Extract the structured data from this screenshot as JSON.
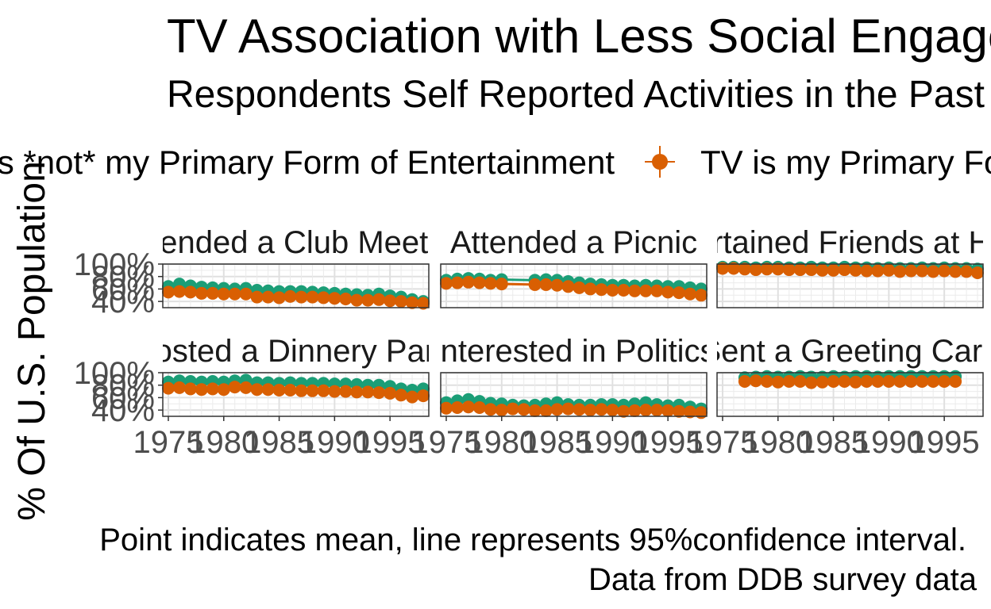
{
  "title": "TV Association with Less Social Engagement",
  "subtitle": "Respondents Self Reported Activities in the Past Year",
  "caption_line1": "Point indicates mean, line represents 95%confidence interval.",
  "caption_line2": "Data from DDB survey data",
  "colors": {
    "not_primary": "#1b9e77",
    "primary": "#d95f02"
  },
  "chart_data": {
    "type": "scatter",
    "ylabel": "% Of U.S. Population",
    "xlabel": "",
    "x_ticks": [
      "1975",
      "1980",
      "1985",
      "1990",
      "1995"
    ],
    "y_ticks": [
      "40%",
      "60%",
      "80%",
      "100%"
    ],
    "ylim": [
      0.3,
      1.0
    ],
    "xlim": [
      1974.5,
      1998.5
    ],
    "legend_position": "top",
    "legend": [
      {
        "name": "TV is *not* my Primary Form of Entertainment",
        "color": "#1b9e77"
      },
      {
        "name": "TV is my Primary Form of Entertainment",
        "color": "#d95f02"
      }
    ],
    "panels": [
      {
        "title": "Attended a Club Meeting",
        "series": [
          {
            "name": "TV is *not* my Primary Form of Entertainment",
            "x": [
              1975,
              1976,
              1977,
              1978,
              1979,
              1980,
              1981,
              1982,
              1983,
              1984,
              1985,
              1986,
              1987,
              1988,
              1989,
              1990,
              1991,
              1992,
              1993,
              1994,
              1995,
              1996,
              1997,
              1998
            ],
            "y": [
              0.64,
              0.68,
              0.65,
              0.63,
              0.62,
              0.61,
              0.6,
              0.61,
              0.58,
              0.57,
              0.56,
              0.56,
              0.56,
              0.55,
              0.54,
              0.53,
              0.52,
              0.51,
              0.5,
              0.52,
              0.49,
              0.47,
              0.43,
              0.4
            ]
          },
          {
            "name": "TV is my Primary Form of Entertainment",
            "x": [
              1975,
              1976,
              1977,
              1978,
              1979,
              1980,
              1981,
              1982,
              1983,
              1984,
              1985,
              1986,
              1987,
              1988,
              1989,
              1990,
              1991,
              1992,
              1993,
              1994,
              1995,
              1996,
              1997,
              1998
            ],
            "y": [
              0.55,
              0.56,
              0.55,
              0.53,
              0.53,
              0.52,
              0.52,
              0.52,
              0.47,
              0.47,
              0.46,
              0.48,
              0.47,
              0.47,
              0.46,
              0.45,
              0.44,
              0.42,
              0.42,
              0.43,
              0.41,
              0.4,
              0.38,
              0.37
            ]
          }
        ]
      },
      {
        "title": "Attended a Picnic",
        "series": [
          {
            "name": "TV is *not* my Primary Form of Entertainment",
            "x": [
              1975,
              1976,
              1977,
              1978,
              1979,
              1980,
              1983,
              1984,
              1985,
              1986,
              1987,
              1988,
              1989,
              1990,
              1991,
              1992,
              1993,
              1994,
              1995,
              1996,
              1997,
              1998
            ],
            "y": [
              0.74,
              0.76,
              0.77,
              0.76,
              0.74,
              0.75,
              0.74,
              0.75,
              0.74,
              0.72,
              0.7,
              0.68,
              0.67,
              0.66,
              0.66,
              0.65,
              0.66,
              0.65,
              0.64,
              0.64,
              0.62,
              0.6
            ]
          },
          {
            "name": "TV is my Primary Form of Entertainment",
            "x": [
              1975,
              1976,
              1977,
              1978,
              1979,
              1980,
              1983,
              1984,
              1985,
              1986,
              1987,
              1988,
              1989,
              1990,
              1991,
              1992,
              1993,
              1994,
              1995,
              1996,
              1997,
              1998
            ],
            "y": [
              0.69,
              0.7,
              0.71,
              0.7,
              0.69,
              0.68,
              0.67,
              0.67,
              0.66,
              0.64,
              0.62,
              0.6,
              0.59,
              0.58,
              0.58,
              0.57,
              0.57,
              0.57,
              0.55,
              0.54,
              0.52,
              0.5
            ]
          }
        ]
      },
      {
        "title": "Entertained Friends at Home",
        "series": [
          {
            "name": "TV is *not* my Primary Form of Entertainment",
            "x": [
              1975,
              1976,
              1977,
              1978,
              1979,
              1980,
              1981,
              1982,
              1983,
              1984,
              1985,
              1986,
              1987,
              1988,
              1989,
              1990,
              1991,
              1992,
              1993,
              1994,
              1995,
              1996,
              1997,
              1998
            ],
            "y": [
              0.95,
              0.95,
              0.95,
              0.94,
              0.95,
              0.95,
              0.94,
              0.94,
              0.95,
              0.94,
              0.94,
              0.95,
              0.94,
              0.94,
              0.93,
              0.94,
              0.93,
              0.93,
              0.94,
              0.93,
              0.94,
              0.93,
              0.93,
              0.92
            ]
          },
          {
            "name": "TV is my Primary Form of Entertainment",
            "x": [
              1975,
              1976,
              1977,
              1978,
              1979,
              1980,
              1981,
              1982,
              1983,
              1984,
              1985,
              1986,
              1987,
              1988,
              1989,
              1990,
              1991,
              1992,
              1993,
              1994,
              1995,
              1996,
              1997,
              1998
            ],
            "y": [
              0.93,
              0.93,
              0.92,
              0.91,
              0.92,
              0.92,
              0.91,
              0.91,
              0.91,
              0.9,
              0.9,
              0.91,
              0.9,
              0.89,
              0.89,
              0.9,
              0.88,
              0.89,
              0.89,
              0.88,
              0.89,
              0.88,
              0.88,
              0.86
            ]
          }
        ]
      },
      {
        "title": "Hosted a Dinnery Party",
        "series": [
          {
            "name": "TV is *not* my Primary Form of Entertainment",
            "x": [
              1975,
              1976,
              1977,
              1978,
              1979,
              1980,
              1981,
              1982,
              1983,
              1984,
              1985,
              1986,
              1987,
              1988,
              1989,
              1990,
              1991,
              1992,
              1993,
              1994,
              1995,
              1996,
              1997,
              1998
            ],
            "y": [
              0.85,
              0.87,
              0.86,
              0.85,
              0.86,
              0.85,
              0.87,
              0.88,
              0.84,
              0.84,
              0.83,
              0.84,
              0.83,
              0.83,
              0.83,
              0.82,
              0.82,
              0.81,
              0.8,
              0.8,
              0.78,
              0.74,
              0.72,
              0.74
            ]
          },
          {
            "name": "TV is my Primary Form of Entertainment",
            "x": [
              1975,
              1976,
              1977,
              1978,
              1979,
              1980,
              1981,
              1982,
              1983,
              1984,
              1985,
              1986,
              1987,
              1988,
              1989,
              1990,
              1991,
              1992,
              1993,
              1994,
              1995,
              1996,
              1997,
              1998
            ],
            "y": [
              0.75,
              0.76,
              0.74,
              0.73,
              0.74,
              0.73,
              0.77,
              0.76,
              0.73,
              0.73,
              0.72,
              0.72,
              0.71,
              0.71,
              0.71,
              0.7,
              0.7,
              0.69,
              0.69,
              0.68,
              0.67,
              0.64,
              0.61,
              0.63
            ]
          }
        ]
      },
      {
        "title": "Interested in Politics",
        "series": [
          {
            "name": "TV is *not* my Primary Form of Entertainment",
            "x": [
              1975,
              1976,
              1977,
              1978,
              1979,
              1980,
              1981,
              1982,
              1983,
              1984,
              1985,
              1986,
              1987,
              1988,
              1989,
              1990,
              1991,
              1992,
              1993,
              1994,
              1995,
              1996,
              1997,
              1998
            ],
            "y": [
              0.52,
              0.55,
              0.57,
              0.54,
              0.51,
              0.5,
              0.48,
              0.47,
              0.48,
              0.5,
              0.52,
              0.49,
              0.48,
              0.48,
              0.49,
              0.49,
              0.48,
              0.5,
              0.52,
              0.49,
              0.47,
              0.48,
              0.45,
              0.42
            ]
          },
          {
            "name": "TV is my Primary Form of Entertainment",
            "x": [
              1975,
              1976,
              1977,
              1978,
              1979,
              1980,
              1981,
              1982,
              1983,
              1984,
              1985,
              1986,
              1987,
              1988,
              1989,
              1990,
              1991,
              1992,
              1993,
              1994,
              1995,
              1996,
              1997,
              1998
            ],
            "y": [
              0.43,
              0.44,
              0.45,
              0.44,
              0.41,
              0.4,
              0.42,
              0.41,
              0.39,
              0.39,
              0.41,
              0.42,
              0.41,
              0.4,
              0.41,
              0.4,
              0.38,
              0.39,
              0.4,
              0.4,
              0.39,
              0.38,
              0.37,
              0.36
            ]
          }
        ]
      },
      {
        "title": "Sent a Greeting Card",
        "series": [
          {
            "name": "TV is *not* my Primary Form of Entertainment",
            "x": [
              1977,
              1978,
              1979,
              1980,
              1981,
              1982,
              1983,
              1984,
              1985,
              1986,
              1987,
              1988,
              1989,
              1990,
              1991,
              1992,
              1993,
              1994,
              1995,
              1996
            ],
            "y": [
              0.92,
              0.93,
              0.94,
              0.93,
              0.93,
              0.94,
              0.93,
              0.93,
              0.94,
              0.93,
              0.94,
              0.94,
              0.93,
              0.94,
              0.94,
              0.94,
              0.94,
              0.94,
              0.94,
              0.94
            ]
          },
          {
            "name": "TV is my Primary Form of Entertainment",
            "x": [
              1977,
              1978,
              1979,
              1980,
              1981,
              1982,
              1983,
              1984,
              1985,
              1986,
              1987,
              1988,
              1989,
              1990,
              1991,
              1992,
              1993,
              1994,
              1995,
              1996
            ],
            "y": [
              0.86,
              0.87,
              0.86,
              0.85,
              0.86,
              0.86,
              0.84,
              0.85,
              0.86,
              0.86,
              0.85,
              0.86,
              0.86,
              0.86,
              0.86,
              0.86,
              0.86,
              0.86,
              0.86,
              0.86
            ]
          }
        ]
      }
    ]
  }
}
